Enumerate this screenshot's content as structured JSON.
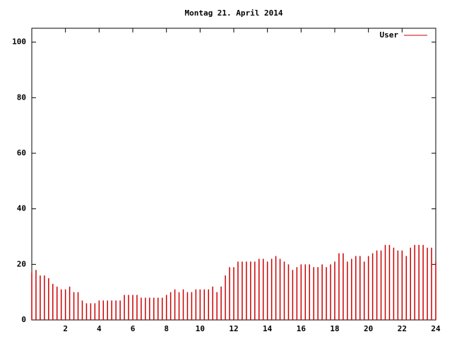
{
  "chart_data": {
    "type": "impulse",
    "title": "Montag 21. April 2014",
    "series": [
      {
        "name": "User",
        "color": "#cc0000",
        "x": [
          0,
          0.25,
          0.5,
          0.75,
          1,
          1.25,
          1.5,
          1.75,
          2,
          2.25,
          2.5,
          2.75,
          3,
          3.25,
          3.5,
          3.75,
          4,
          4.25,
          4.5,
          4.75,
          5,
          5.25,
          5.5,
          5.75,
          6,
          6.25,
          6.5,
          6.75,
          7,
          7.25,
          7.5,
          7.75,
          8,
          8.25,
          8.5,
          8.75,
          9,
          9.25,
          9.5,
          9.75,
          10,
          10.25,
          10.5,
          10.75,
          11,
          11.25,
          11.5,
          11.75,
          12,
          12.25,
          12.5,
          12.75,
          13,
          13.25,
          13.5,
          13.75,
          14,
          14.25,
          14.5,
          14.75,
          15,
          15.25,
          15.5,
          15.75,
          16,
          16.25,
          16.5,
          16.75,
          17,
          17.25,
          17.5,
          17.75,
          18,
          18.25,
          18.5,
          18.75,
          19,
          19.25,
          19.5,
          19.75,
          20,
          20.25,
          20.5,
          20.75,
          21,
          21.25,
          21.5,
          21.75,
          22,
          22.25,
          22.5,
          22.75,
          23,
          23.25,
          23.5,
          23.75,
          24
        ],
        "values": [
          17,
          18,
          16,
          16,
          15,
          13,
          12,
          11,
          11,
          12,
          10,
          10,
          7,
          6,
          6,
          6,
          7,
          7,
          7,
          7,
          7,
          7,
          9,
          9,
          9,
          9,
          8,
          8,
          8,
          8,
          8,
          8,
          9,
          10,
          11,
          10,
          11,
          10,
          10,
          11,
          11,
          11,
          11,
          12,
          10,
          12,
          16,
          19,
          19,
          21,
          21,
          21,
          21,
          21,
          22,
          22,
          21,
          22,
          23,
          22,
          21,
          20,
          18,
          19,
          20,
          20,
          20,
          19,
          19,
          20,
          19,
          20,
          21,
          24,
          24,
          21,
          22,
          23,
          23,
          21,
          23,
          24,
          25,
          25,
          27,
          27,
          26,
          25,
          25,
          23,
          26,
          27,
          27,
          27,
          26,
          26,
          21
        ]
      }
    ],
    "xlim": [
      0,
      24
    ],
    "xticks": [
      2,
      4,
      6,
      8,
      10,
      12,
      14,
      16,
      18,
      20,
      22,
      24
    ],
    "ylim": [
      0,
      105
    ],
    "yticks": [
      0,
      20,
      40,
      60,
      80,
      100
    ],
    "legend": "top-right"
  }
}
